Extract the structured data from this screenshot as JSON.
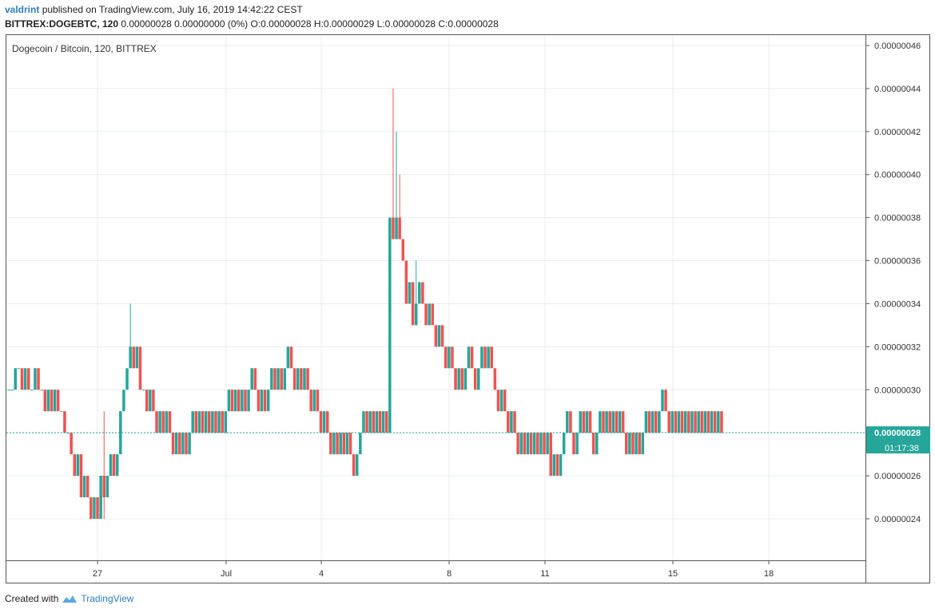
{
  "header": {
    "author": "valdrint",
    "published_text": "published on TradingView.com, July 16, 2019 14:42:22 CEST",
    "symbol_line_symbol": "BITTREX:DOGEBTC, 120",
    "symbol_line_values": "0.00000028 0.00000000 (0%) O:0.00000028 H:0.00000029 L:0.00000028 C:0.00000028"
  },
  "legend": "Dogecoin / Bitcoin, 120, BITTREX",
  "price_label": "0.00000028",
  "countdown_label": "01:17:38",
  "footer": {
    "created_with": "Created with",
    "brand": "TradingView"
  },
  "colors": {
    "up": "#26a69a",
    "down": "#ef5350",
    "grid": "#e8edf3",
    "price_line": "#26a69a"
  },
  "chart_data": {
    "type": "candlestick",
    "title": "Dogecoin / Bitcoin, 120, BITTREX",
    "ylim": [
      2.2e-07,
      4.7e-07
    ],
    "yticks": [
      "0.00000046",
      "0.00000044",
      "0.00000042",
      "0.00000040",
      "0.00000038",
      "0.00000036",
      "0.00000034",
      "0.00000032",
      "0.00000030",
      "0.00000028",
      "0.00000026",
      "0.00000024"
    ],
    "xticks": [
      "27",
      "Jul",
      "4",
      "8",
      "11",
      "15",
      "18"
    ],
    "grid": true,
    "last_price": "0.00000028",
    "close_path_units_1e8": [
      30,
      30,
      31,
      31,
      30,
      31,
      30,
      30,
      31,
      30,
      30,
      29,
      30,
      29,
      30,
      29,
      29,
      28,
      28,
      27,
      26,
      27,
      25,
      26,
      25,
      24,
      25,
      24,
      26,
      25,
      26,
      27,
      26,
      27,
      29,
      30,
      31,
      32,
      31,
      32,
      30,
      30,
      29,
      30,
      29,
      28,
      29,
      28,
      29,
      28,
      27,
      28,
      27,
      28,
      27,
      28,
      29,
      28,
      29,
      28,
      29,
      28,
      29,
      28,
      29,
      28,
      29,
      30,
      29,
      30,
      29,
      30,
      29,
      30,
      31,
      30,
      29,
      30,
      29,
      30,
      31,
      30,
      31,
      30,
      31,
      32,
      31,
      30,
      31,
      30,
      31,
      30,
      29,
      30,
      29,
      28,
      29,
      28,
      27,
      28,
      27,
      28,
      27,
      28,
      27,
      26,
      27,
      28,
      29,
      28,
      29,
      28,
      29,
      28,
      29,
      28,
      38,
      37,
      38,
      37,
      36,
      34,
      35,
      33,
      34,
      35,
      34,
      33,
      34,
      33,
      32,
      33,
      32,
      31,
      32,
      31,
      30,
      31,
      30,
      31,
      32,
      31,
      30,
      31,
      32,
      31,
      32,
      31,
      30,
      29,
      30,
      29,
      28,
      29,
      28,
      27,
      28,
      27,
      28,
      27,
      28,
      27,
      28,
      27,
      28,
      26,
      27,
      26,
      27,
      28,
      29,
      28,
      27,
      28,
      29,
      28,
      29,
      28,
      27,
      28,
      29,
      28,
      29,
      28,
      29,
      28,
      29,
      28,
      27,
      28,
      27,
      28,
      27,
      28,
      29,
      28,
      29,
      28,
      29,
      30,
      29,
      28,
      29,
      28,
      29,
      28,
      29,
      28,
      29,
      28,
      29,
      28,
      29,
      28,
      29,
      28,
      29,
      28
    ]
  }
}
